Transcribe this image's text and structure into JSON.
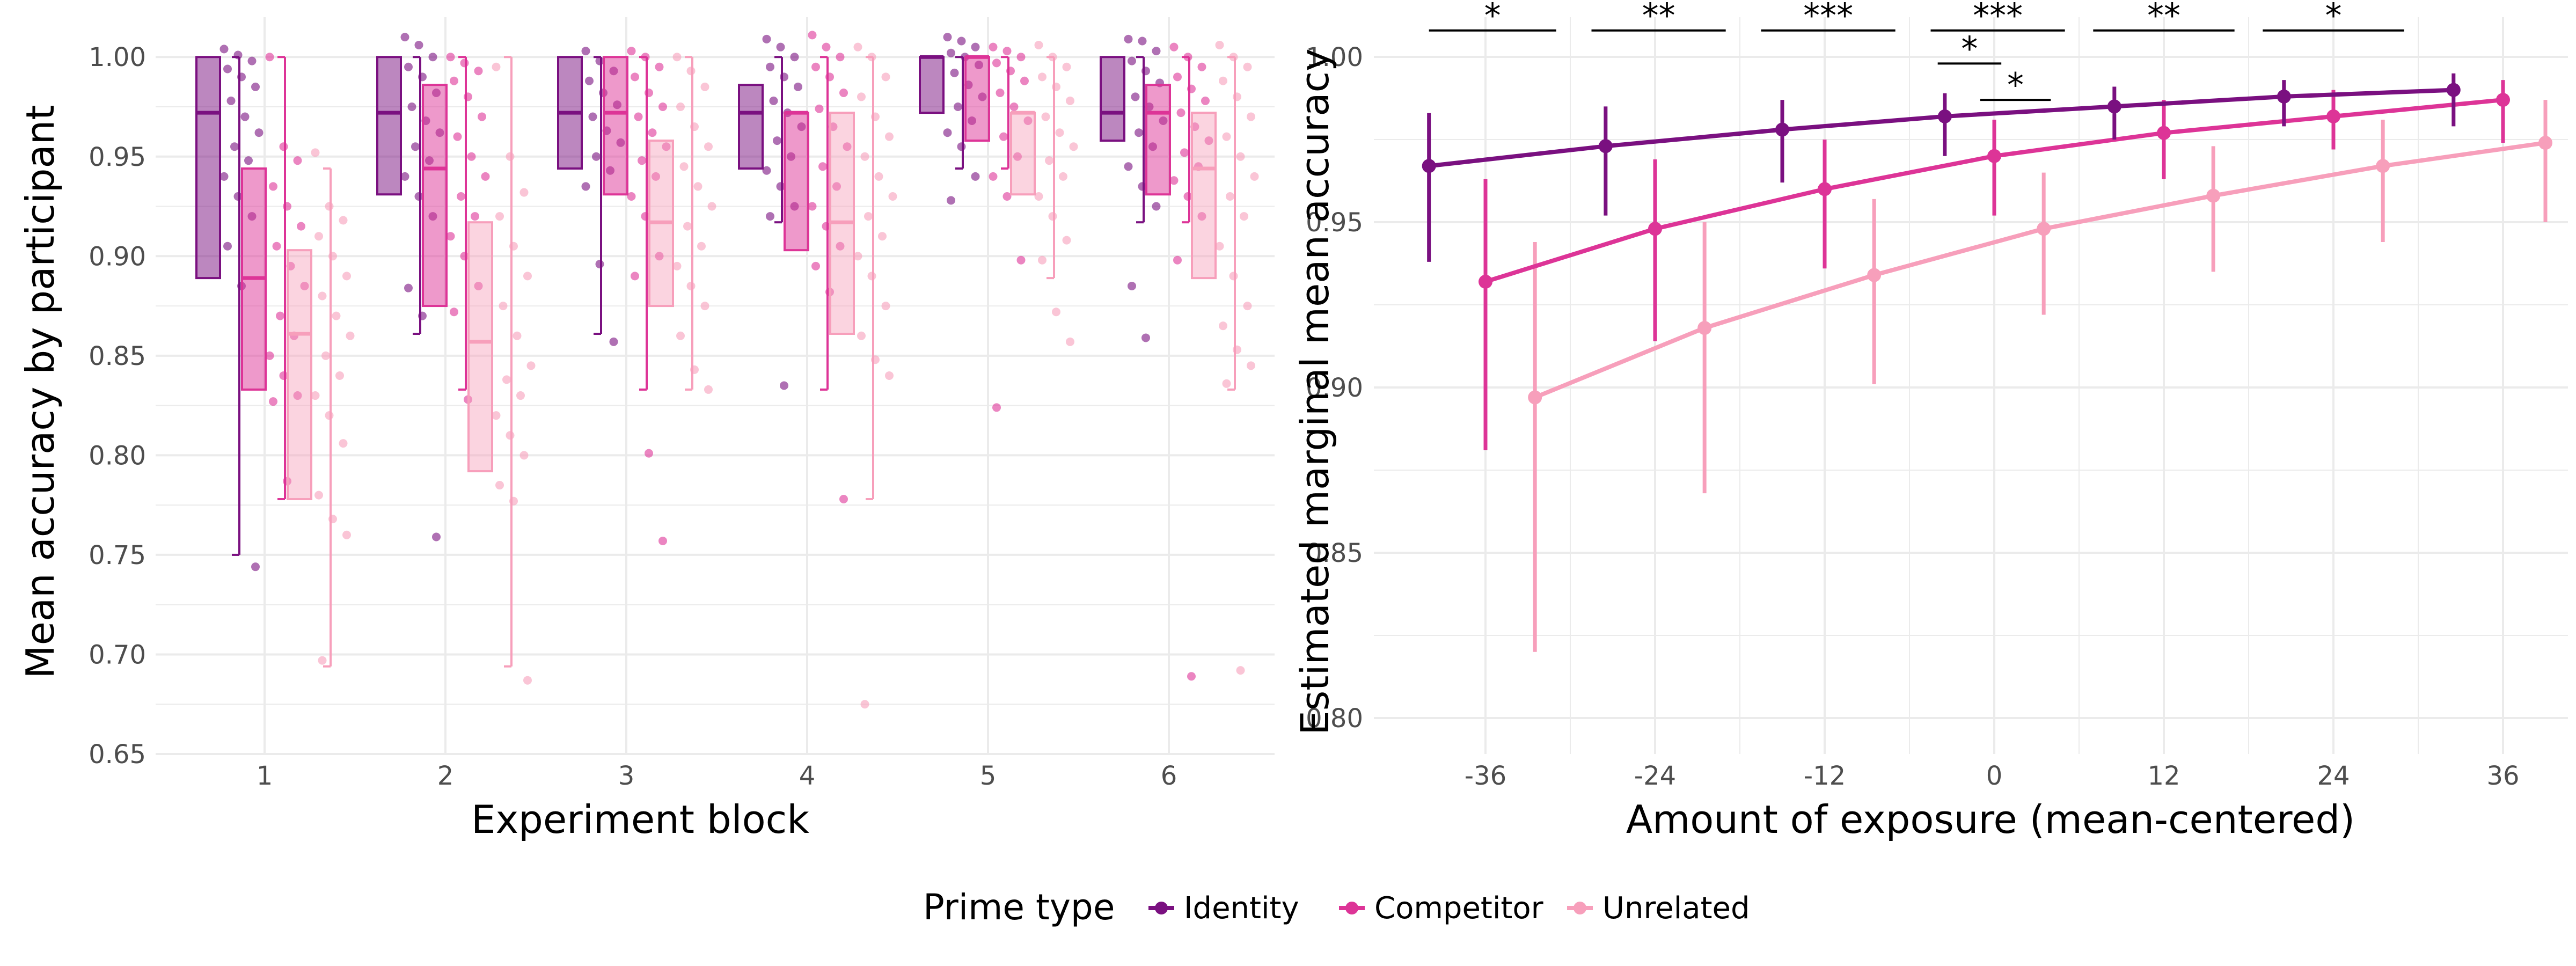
{
  "chart_data": [
    {
      "type": "box",
      "xlabel": "Experiment block",
      "ylabel": "Mean accuracy by participant",
      "ylim": [
        0.65,
        1.02
      ],
      "yticks": [
        "0.65",
        "0.70",
        "0.75",
        "0.80",
        "0.85",
        "0.90",
        "0.95",
        "1.00"
      ],
      "categories": [
        "1",
        "2",
        "3",
        "4",
        "5",
        "6"
      ],
      "series": [
        {
          "name": "Identity",
          "boxes": [
            {
              "min": 0.75,
              "q1": 0.889,
              "median": 0.972,
              "q3": 1.0,
              "max": 1.0,
              "points": [
                1.004,
                1.001,
                0.998,
                0.994,
                0.99,
                0.985,
                0.978,
                0.97,
                0.962,
                0.955,
                0.948,
                0.94,
                0.93,
                0.92,
                0.905,
                0.885,
                0.744
              ]
            },
            {
              "min": 0.861,
              "q1": 0.931,
              "median": 0.972,
              "q3": 1.0,
              "max": 1.0,
              "points": [
                1.01,
                1.006,
                1.0,
                0.995,
                0.99,
                0.982,
                0.975,
                0.968,
                0.962,
                0.955,
                0.948,
                0.94,
                0.93,
                0.92,
                0.884,
                0.87,
                0.759
              ]
            },
            {
              "min": 0.861,
              "q1": 0.944,
              "median": 0.972,
              "q3": 1.0,
              "max": 1.0,
              "points": [
                1.003,
                0.998,
                0.993,
                0.988,
                0.982,
                0.976,
                0.97,
                0.963,
                0.957,
                0.95,
                0.943,
                0.935,
                0.896,
                0.857
              ]
            },
            {
              "min": 0.917,
              "q1": 0.944,
              "median": 0.972,
              "q3": 0.986,
              "max": 1.0,
              "points": [
                1.009,
                1.005,
                1.0,
                0.995,
                0.99,
                0.985,
                0.978,
                0.972,
                0.965,
                0.958,
                0.95,
                0.943,
                0.935,
                0.925,
                0.92,
                0.835
              ]
            },
            {
              "min": 0.944,
              "q1": 0.972,
              "median": 1.0,
              "q3": 1.0,
              "max": 1.0,
              "points": [
                1.01,
                1.008,
                1.005,
                1.002,
                1.0,
                0.996,
                0.992,
                0.986,
                0.98,
                0.975,
                0.968,
                0.962,
                0.955,
                0.94,
                0.928
              ]
            },
            {
              "min": 0.917,
              "q1": 0.958,
              "median": 0.972,
              "q3": 1.0,
              "max": 1.0,
              "points": [
                1.009,
                1.008,
                1.003,
                0.998,
                0.993,
                0.987,
                0.98,
                0.975,
                0.968,
                0.962,
                0.955,
                0.945,
                0.935,
                0.925,
                0.885,
                0.859
              ]
            }
          ]
        },
        {
          "name": "Competitor",
          "boxes": [
            {
              "min": 0.778,
              "q1": 0.833,
              "median": 0.889,
              "q3": 0.944,
              "max": 1.0,
              "points": [
                1.0,
                0.955,
                0.948,
                0.935,
                0.925,
                0.915,
                0.905,
                0.895,
                0.885,
                0.87,
                0.86,
                0.85,
                0.84,
                0.83,
                0.827,
                0.787
              ]
            },
            {
              "min": 0.833,
              "q1": 0.875,
              "median": 0.944,
              "q3": 0.986,
              "max": 1.0,
              "points": [
                1.0,
                0.997,
                0.993,
                0.988,
                0.98,
                0.97,
                0.96,
                0.95,
                0.94,
                0.93,
                0.92,
                0.91,
                0.9,
                0.885,
                0.872,
                0.828
              ]
            },
            {
              "min": 0.833,
              "q1": 0.931,
              "median": 0.972,
              "q3": 1.0,
              "max": 1.0,
              "points": [
                1.003,
                1.0,
                0.995,
                0.99,
                0.982,
                0.975,
                0.97,
                0.962,
                0.955,
                0.948,
                0.94,
                0.93,
                0.92,
                0.9,
                0.89,
                0.801,
                0.757
              ]
            },
            {
              "min": 0.833,
              "q1": 0.903,
              "median": 0.972,
              "q3": 0.972,
              "max": 1.0,
              "points": [
                1.011,
                1.005,
                1.0,
                0.995,
                0.99,
                0.982,
                0.974,
                0.965,
                0.955,
                0.945,
                0.935,
                0.925,
                0.915,
                0.905,
                0.895,
                0.882,
                0.778
              ]
            },
            {
              "min": 0.944,
              "q1": 0.958,
              "median": 1.0,
              "q3": 1.0,
              "max": 1.0,
              "points": [
                1.005,
                1.003,
                1.0,
                0.997,
                0.993,
                0.988,
                0.982,
                0.975,
                0.968,
                0.96,
                0.95,
                0.94,
                0.93,
                0.898,
                0.824
              ]
            },
            {
              "min": 0.917,
              "q1": 0.931,
              "median": 0.972,
              "q3": 0.986,
              "max": 1.0,
              "points": [
                1.005,
                1.0,
                0.995,
                0.99,
                0.984,
                0.978,
                0.972,
                0.965,
                0.958,
                0.952,
                0.945,
                0.938,
                0.93,
                0.92,
                0.898,
                0.689
              ]
            }
          ]
        },
        {
          "name": "Unrelated",
          "boxes": [
            {
              "min": 0.694,
              "q1": 0.778,
              "median": 0.861,
              "q3": 0.903,
              "max": 0.944,
              "points": [
                0.952,
                0.925,
                0.918,
                0.91,
                0.9,
                0.89,
                0.88,
                0.87,
                0.86,
                0.85,
                0.84,
                0.83,
                0.82,
                0.806,
                0.78,
                0.768,
                0.76,
                0.697
              ]
            },
            {
              "min": 0.694,
              "q1": 0.792,
              "median": 0.857,
              "q3": 0.917,
              "max": 1.0,
              "points": [
                0.995,
                0.95,
                0.932,
                0.92,
                0.905,
                0.89,
                0.875,
                0.86,
                0.845,
                0.838,
                0.83,
                0.82,
                0.81,
                0.8,
                0.785,
                0.777,
                0.687
              ]
            },
            {
              "min": 0.833,
              "q1": 0.875,
              "median": 0.917,
              "q3": 0.958,
              "max": 1.0,
              "points": [
                1.0,
                0.993,
                0.985,
                0.975,
                0.965,
                0.955,
                0.945,
                0.935,
                0.925,
                0.915,
                0.905,
                0.895,
                0.885,
                0.875,
                0.86,
                0.843,
                0.833
              ]
            },
            {
              "min": 0.778,
              "q1": 0.861,
              "median": 0.917,
              "q3": 0.972,
              "max": 1.0,
              "points": [
                1.005,
                1.0,
                0.99,
                0.98,
                0.97,
                0.96,
                0.95,
                0.94,
                0.93,
                0.92,
                0.91,
                0.9,
                0.89,
                0.875,
                0.86,
                0.848,
                0.84,
                0.675
              ]
            },
            {
              "min": 0.889,
              "q1": 0.931,
              "median": 0.972,
              "q3": 0.972,
              "max": 1.0,
              "points": [
                1.006,
                1.0,
                0.995,
                0.99,
                0.985,
                0.978,
                0.97,
                0.962,
                0.955,
                0.948,
                0.94,
                0.93,
                0.92,
                0.908,
                0.898,
                0.872,
                0.857
              ]
            },
            {
              "min": 0.833,
              "q1": 0.889,
              "median": 0.944,
              "q3": 0.972,
              "max": 1.0,
              "points": [
                1.006,
                1.0,
                0.995,
                0.988,
                0.98,
                0.97,
                0.96,
                0.95,
                0.94,
                0.93,
                0.92,
                0.905,
                0.89,
                0.875,
                0.865,
                0.853,
                0.845,
                0.836,
                0.692
              ]
            }
          ]
        }
      ],
      "grid": true
    },
    {
      "type": "line",
      "xlabel": "Amount of exposure (mean-centered)",
      "ylabel": "Estimated marginal mean accuracy",
      "xlim": [
        -42,
        39
      ],
      "ylim": [
        0.795,
        1.012
      ],
      "xticks": [
        "-36",
        "-24",
        "-12",
        "0",
        "12",
        "24",
        "36"
      ],
      "yticks": [
        "0.80",
        "0.85",
        "0.90",
        "0.95",
        "1.00"
      ],
      "series": [
        {
          "name": "Identity",
          "x": [
            -40,
            -27.5,
            -15,
            -3.5,
            8.5,
            20.5,
            32.5
          ],
          "y": [
            0.967,
            0.973,
            0.978,
            0.982,
            0.985,
            0.988,
            0.99
          ],
          "lower": [
            0.938,
            0.952,
            0.962,
            0.97,
            0.975,
            0.979,
            0.979
          ],
          "upper": [
            0.983,
            0.985,
            0.987,
            0.989,
            0.991,
            0.993,
            0.995
          ]
        },
        {
          "name": "Competitor",
          "x": [
            -36,
            -24,
            -12,
            0,
            12,
            24,
            36
          ],
          "y": [
            0.932,
            0.948,
            0.96,
            0.97,
            0.977,
            0.982,
            0.987
          ],
          "lower": [
            0.881,
            0.914,
            0.936,
            0.952,
            0.963,
            0.972,
            0.974
          ],
          "upper": [
            0.963,
            0.969,
            0.975,
            0.981,
            0.987,
            0.99,
            0.993
          ]
        },
        {
          "name": "Unrelated",
          "x": [
            -32.5,
            -20.5,
            -8.5,
            3.5,
            15.5,
            27.5,
            39
          ],
          "y": [
            0.897,
            0.918,
            0.934,
            0.948,
            0.958,
            0.967,
            0.974
          ],
          "lower": [
            0.82,
            0.868,
            0.901,
            0.922,
            0.935,
            0.944,
            0.95
          ],
          "upper": [
            0.944,
            0.95,
            0.957,
            0.965,
            0.973,
            0.981,
            0.987
          ]
        }
      ],
      "annotations": [
        {
          "label": "*",
          "x1": -40,
          "x2": -31,
          "y": 1.008
        },
        {
          "label": "**",
          "x1": -28.5,
          "x2": -19,
          "y": 1.008
        },
        {
          "label": "***",
          "x1": -16.5,
          "x2": -7,
          "y": 1.008
        },
        {
          "label": "***",
          "x1": -4.5,
          "x2": 5,
          "y": 1.008
        },
        {
          "label": "*",
          "x1": -4,
          "x2": 0.5,
          "y": 0.998
        },
        {
          "label": "*",
          "x1": -1,
          "x2": 4,
          "y": 0.987
        },
        {
          "label": "**",
          "x1": 7,
          "x2": 17,
          "y": 1.008
        },
        {
          "label": "*",
          "x1": 19,
          "x2": 29,
          "y": 1.008
        }
      ],
      "grid": true
    }
  ],
  "legend": {
    "title": "Prime type",
    "items": [
      "Identity",
      "Competitor",
      "Unrelated"
    ],
    "placement": "bottom"
  },
  "colors": {
    "Identity": "#7a1080",
    "Competitor": "#dd3497",
    "Unrelated": "#f79fbb"
  }
}
